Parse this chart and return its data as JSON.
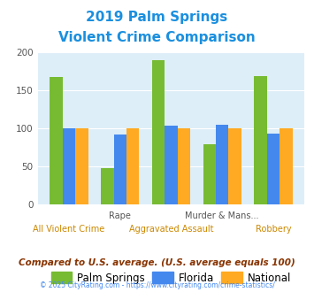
{
  "title_line1": "2019 Palm Springs",
  "title_line2": "Violent Crime Comparison",
  "title_color": "#1a8fdf",
  "groups": [
    {
      "label": "All Violent Crime",
      "palm_springs": 168,
      "florida": 100,
      "national": 100
    },
    {
      "label": "Rape",
      "palm_springs": 48,
      "florida": 92,
      "national": 100
    },
    {
      "label": "Aggravated Assault",
      "palm_springs": 190,
      "florida": 104,
      "national": 100
    },
    {
      "label": "Murder & Mans...",
      "palm_springs": 79,
      "florida": 105,
      "national": 100
    },
    {
      "label": "Robbery",
      "palm_springs": 169,
      "florida": 93,
      "national": 100
    }
  ],
  "top_labels": [
    "",
    "Rape",
    "",
    "Murder & Mans...",
    ""
  ],
  "bottom_labels": [
    "All Violent Crime",
    "",
    "Aggravated Assault",
    "",
    "Robbery"
  ],
  "color_palm_springs": "#77bb33",
  "color_florida": "#4488ee",
  "color_national": "#ffaa22",
  "plot_bg_color": "#ddeef8",
  "ylim": [
    0,
    200
  ],
  "yticks": [
    0,
    50,
    100,
    150,
    200
  ],
  "legend_labels": [
    "Palm Springs",
    "Florida",
    "National"
  ],
  "footer_text": "Compared to U.S. average. (U.S. average equals 100)",
  "footer_color": "#883300",
  "credit_text": "© 2025 CityRating.com - https://www.cityrating.com/crime-statistics/",
  "credit_color": "#4488ee"
}
